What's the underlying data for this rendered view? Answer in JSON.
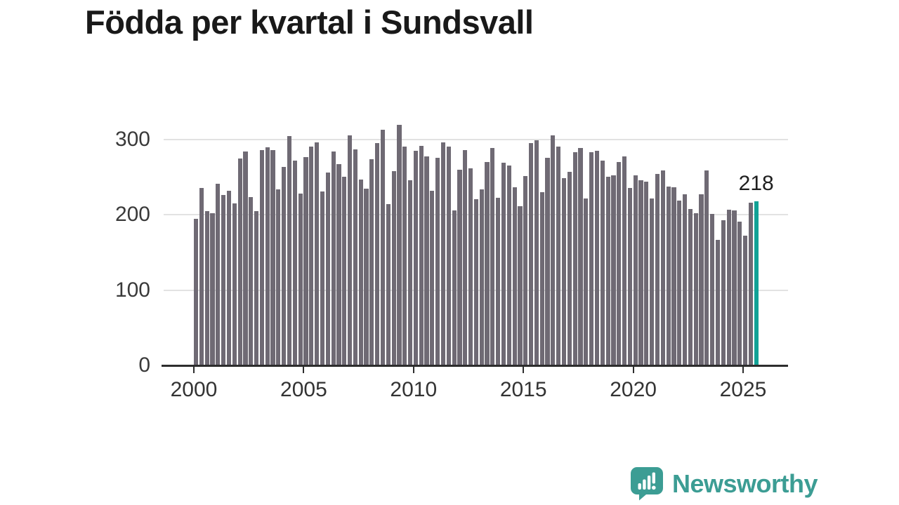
{
  "header": {
    "title": "Födda per kvartal i Sundsvall"
  },
  "annotation": {
    "value_label": "218"
  },
  "branding": {
    "name": "Newsworthy",
    "icon": "bar-chart-speech-bubble-icon"
  },
  "colors": {
    "bar": "#6f6a74",
    "highlight": "#12a296",
    "grid": "#e2e2e2",
    "axis": "#2d2d2d",
    "title_text": "#191919",
    "tick_text": "#3a3a3a",
    "logo": "#3c9d94"
  },
  "chart_data": {
    "type": "bar",
    "title": "Födda per kvartal i Sundsvall",
    "frequency": "quarterly",
    "start_period": "2000-Q1",
    "end_period": "2025-Q3",
    "values": [
      195,
      236,
      205,
      202,
      241,
      226,
      232,
      215,
      275,
      284,
      224,
      205,
      286,
      290,
      286,
      234,
      264,
      305,
      272,
      228,
      277,
      291,
      296,
      231,
      256,
      284,
      267,
      251,
      306,
      287,
      247,
      235,
      274,
      295,
      313,
      214,
      258,
      320,
      291,
      246,
      285,
      292,
      278,
      232,
      276,
      296,
      291,
      206,
      260,
      286,
      262,
      221,
      234,
      270,
      289,
      223,
      269,
      266,
      237,
      212,
      252,
      295,
      299,
      230,
      276,
      306,
      291,
      249,
      257,
      283,
      289,
      222,
      283,
      285,
      272,
      251,
      253,
      270,
      278,
      236,
      253,
      246,
      244,
      222,
      254,
      259,
      238,
      237,
      219,
      227,
      208,
      202,
      227,
      259,
      201,
      167,
      193,
      207,
      206,
      191,
      172,
      216,
      218
    ],
    "highlight_last": true,
    "last_value": 218,
    "x_tick_labels": [
      "2000",
      "2005",
      "2010",
      "2015",
      "2020",
      "2025"
    ],
    "y_ticks": [
      0,
      100,
      200,
      300
    ],
    "ylim": [
      0,
      340
    ],
    "grid": "horizontal",
    "legend": "none"
  }
}
